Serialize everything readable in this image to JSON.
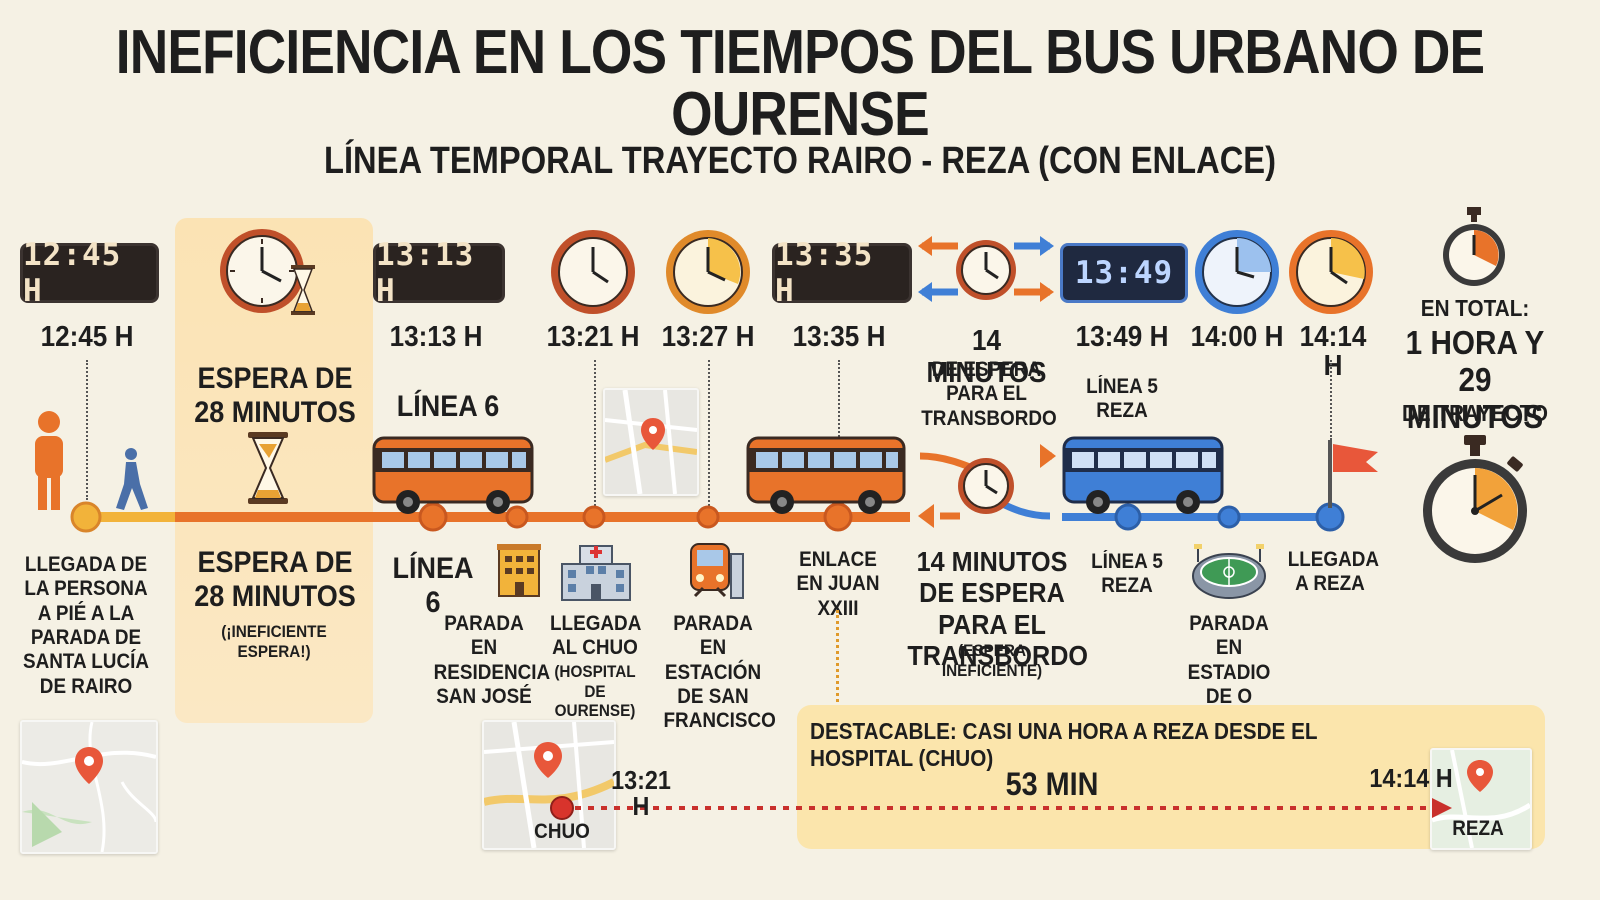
{
  "title": "INEFICIENCIA EN LOS TIEMPOS DEL BUS URBANO DE OURENSE",
  "subtitle": "LÍNEA TEMPORAL TRAYECTO RAIRO - REZA (CON ENLACE)",
  "clocks": {
    "d1245": "12:45 H",
    "d1313": "13:13 H",
    "d1335": "13:35 H",
    "d1349": "13:49"
  },
  "times": {
    "t1": "12:45 H",
    "t2": "13:13 H",
    "t3": "13:21 H",
    "t4": "13:27 H",
    "t5": "13:35 H",
    "t6": "13:49 H",
    "t7": "14:00 H",
    "t8": "14:14 H"
  },
  "top_labels": {
    "wait_top": "ESPERA DE 28 MINUTOS",
    "line6_top": "LÍNEA 6",
    "transfer_top_big": "14 MINUTOS",
    "transfer_top_small": "DE ESPERA PARA EL TRANSBORDO",
    "line5_top": "LÍNEA 5 REZA",
    "total_small": "EN TOTAL:",
    "total_big": "1 HORA Y 29 MINUTOS",
    "total_tail": "DE TRAYECTO"
  },
  "bottom_labels": {
    "arrival_person": "LLEGADA DE LA PERSONA A PIÉ A LA PARADA DE SANTA LUCÍA DE RAIRO",
    "wait_big": "ESPERA DE 28 MINUTOS",
    "wait_note": "(¡INEFICIENTE ESPERA!)",
    "line6": "LÍNEA 6",
    "stop_residencia": "PARADA EN RESIDENCIA SAN JOSÉ",
    "chuo_main": "LLEGADA AL CHUO",
    "chuo_sub": "(HOSPITAL DE OURENSE)",
    "stop_estacion": "PARADA EN ESTACIÓN DE SAN FRANCISCO",
    "enlace": "ENLACE EN JUAN XXIII",
    "transfer_big": "14 MINUTOS DE ESPERA PARA EL TRANSBORDO",
    "transfer_note": "(ESPERA INEFICIENTE)",
    "line5": "LÍNEA 5 REZA",
    "stop_estadio": "PARADA EN ESTADIO DE O COUTO",
    "arrival_reza": "LLEGADA A REZA"
  },
  "highlight": {
    "text": "DESTACABLE: CASI UNA HORA A REZA DESDE EL HOSPITAL (CHUO)",
    "start_time": "13:21 H",
    "duration": "53 MIN",
    "end_time": "14:14 H",
    "start_place": "CHUO",
    "end_place": "REZA"
  },
  "colors": {
    "orange": "#e8732a",
    "amber": "#f2b33a",
    "blue": "#3f7fd6",
    "dark": "#2a2320",
    "red": "#c9302c"
  }
}
